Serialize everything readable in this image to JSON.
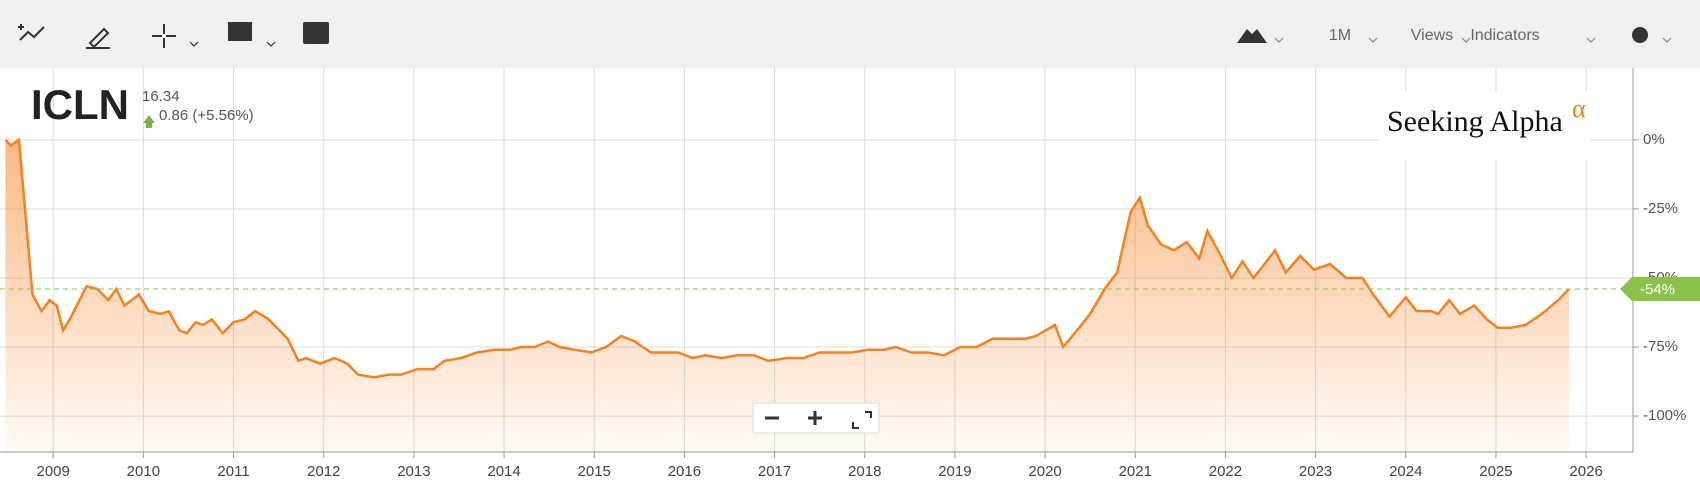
{
  "toolbar": {
    "interval": "1M",
    "views": "Views",
    "indicators": "Indicators"
  },
  "quote": {
    "symbol": "ICLN",
    "price": "16.34",
    "change": "0.86 (+5.56%)"
  },
  "logo": {
    "text": "Seeking Alpha",
    "mark": "α"
  },
  "chart_data": {
    "type": "area",
    "color": "#f7801f",
    "grid": true,
    "xlim": [
      2008.41,
      2026.52
    ],
    "ylim": [
      -113,
      26
    ],
    "xticks": [
      2009,
      2010,
      2011,
      2012,
      2013,
      2014,
      2015,
      2016,
      2017,
      2018,
      2019,
      2020,
      2021,
      2022,
      2023,
      2024,
      2025,
      2026
    ],
    "yticks": [
      {
        "value": 0,
        "label": "0%"
      },
      {
        "value": -25,
        "label": "-25%"
      },
      {
        "value": -50,
        "label": "-50%"
      },
      {
        "value": -75,
        "label": "-75%"
      },
      {
        "value": -100,
        "label": "-100%"
      }
    ],
    "current": {
      "value": -54,
      "label": "-54%"
    },
    "x": [
      2008.47,
      2008.53,
      2008.62,
      2008.77,
      2008.87,
      2008.96,
      2009.04,
      2009.11,
      2009.2,
      2009.37,
      2009.49,
      2009.61,
      2009.7,
      2009.79,
      2009.95,
      2010.06,
      2010.19,
      2010.28,
      2010.4,
      2010.48,
      2010.58,
      2010.66,
      2010.76,
      2010.88,
      2011.0,
      2011.12,
      2011.24,
      2011.39,
      2011.6,
      2011.72,
      2011.8,
      2011.96,
      2012.12,
      2012.26,
      2012.38,
      2012.56,
      2012.72,
      2012.86,
      2013.04,
      2013.22,
      2013.34,
      2013.52,
      2013.7,
      2013.89,
      2014.07,
      2014.19,
      2014.34,
      2014.49,
      2014.61,
      2014.79,
      2014.97,
      2015.13,
      2015.3,
      2015.45,
      2015.63,
      2015.77,
      2015.93,
      2016.09,
      2016.23,
      2016.41,
      2016.59,
      2016.77,
      2016.93,
      2017.13,
      2017.32,
      2017.5,
      2017.68,
      2017.86,
      2018.04,
      2018.22,
      2018.34,
      2018.52,
      2018.7,
      2018.88,
      2019.06,
      2019.24,
      2019.42,
      2019.6,
      2019.78,
      2019.9,
      2020.11,
      2020.2,
      2020.38,
      2020.5,
      2020.66,
      2020.8,
      2020.95,
      2021.05,
      2021.14,
      2021.29,
      2021.43,
      2021.57,
      2021.71,
      2021.8,
      2021.95,
      2022.07,
      2022.19,
      2022.31,
      2022.41,
      2022.55,
      2022.67,
      2022.83,
      2022.98,
      2023.16,
      2023.34,
      2023.52,
      2023.64,
      2023.82,
      2024.0,
      2024.12,
      2024.28,
      2024.36,
      2024.48,
      2024.6,
      2024.76,
      2024.9,
      2025.02,
      2025.17,
      2025.33,
      2025.51,
      2025.69,
      2025.81
    ],
    "values": [
      0,
      -2,
      0,
      -56,
      -62,
      -58,
      -60,
      -69,
      -64,
      -53,
      -54,
      -58,
      -54,
      -60,
      -56,
      -62,
      -63,
      -62,
      -69,
      -70,
      -66,
      -67,
      -65,
      -70,
      -66,
      -65,
      -62,
      -65,
      -72,
      -80,
      -79,
      -81,
      -79,
      -81,
      -85,
      -86,
      -85,
      -85,
      -83,
      -83,
      -80,
      -79,
      -77,
      -76,
      -76,
      -75,
      -75,
      -73,
      -75,
      -76,
      -77,
      -75,
      -71,
      -73,
      -77,
      -77,
      -77,
      -79,
      -78,
      -79,
      -78,
      -78,
      -80,
      -79,
      -79,
      -77,
      -77,
      -77,
      -76,
      -76,
      -75,
      -77,
      -77,
      -78,
      -75,
      -75,
      -72,
      -72,
      -72,
      -71,
      -67,
      -75,
      -68,
      -63,
      -54,
      -48,
      -26,
      -21,
      -31,
      -38,
      -40,
      -37,
      -43,
      -33,
      -42,
      -50,
      -44,
      -50,
      -46,
      -40,
      -48,
      -42,
      -47,
      -45,
      -50,
      -50,
      -56,
      -64,
      -57,
      -62,
      -62,
      -63,
      -58,
      -63,
      -60,
      -65,
      -68,
      -68,
      -67,
      -63,
      -58,
      -54
    ]
  }
}
